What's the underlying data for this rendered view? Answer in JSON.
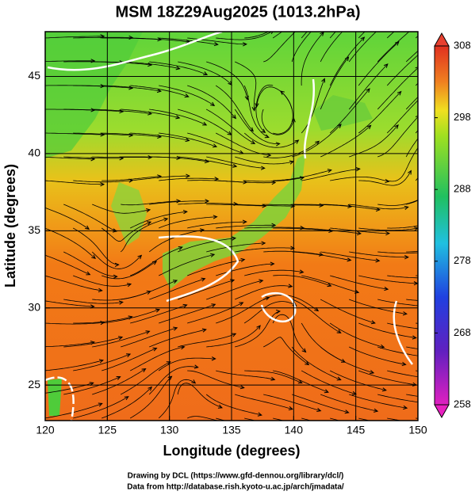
{
  "title": "MSM 18Z29Aug2025 (1013.2hPa)",
  "x_axis": {
    "label": "Longitude (degrees)",
    "range": [
      120,
      150
    ],
    "ticks": [
      120,
      125,
      130,
      135,
      140,
      145,
      150
    ]
  },
  "y_axis": {
    "label": "Latitude  (degrees)",
    "range": [
      22.7,
      47.9
    ],
    "ticks": [
      25,
      30,
      35,
      40,
      45
    ]
  },
  "colorbar": {
    "range": [
      258,
      308
    ],
    "ticks": [
      258,
      268,
      278,
      288,
      298,
      308
    ]
  },
  "credits": [
    "Drawing by DCL (https://www.gfd-dennou.org/library/dcl/)",
    "Data from http://database.rish.kyoto-u.ac.jp/arch/jmadata/"
  ]
}
